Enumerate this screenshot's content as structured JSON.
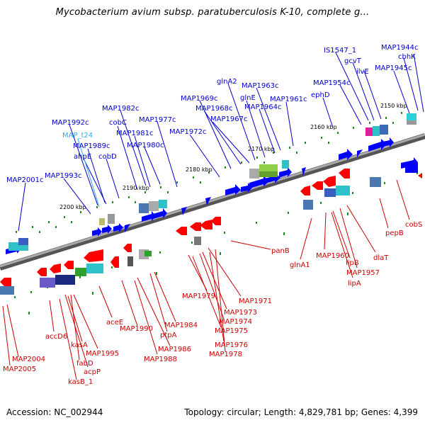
{
  "title": "Mycobacterium avium subsp. paratuberculosis K-10, complete g...",
  "footer": {
    "accession": "Accession: NC_002944",
    "summary": "Topology: circular; Length: 4,829,781 bp; Genes: 4,399"
  },
  "colors": {
    "forward_label": "#0000cc",
    "forward_gene": "#0000ff",
    "highlight_label": "#33aaee",
    "reverse_label": "#cc0000",
    "reverse_gene": "#ff0000",
    "backbone": "#777777"
  },
  "ticks": [
    "2150 kbp",
    "2160 kbp",
    "2170 kbp",
    "2180 kbp",
    "2190 kbp",
    "2200 kbp"
  ],
  "forward_labels": [
    "MAP1944c",
    "cbhK",
    "IS1547_1",
    "gcvT",
    "ilvE",
    "MAP1945c",
    "MAP1954c",
    "ephD",
    "MAP1963c",
    "glnA2",
    "glnE",
    "MAP1964c",
    "MAP1961c",
    "MAP1969c",
    "MAP1968c",
    "MAP1967c",
    "MAP1982c",
    "MAP1977c",
    "MAP1972c",
    "cobC",
    "MAP1981c",
    "MAP1980c",
    "MAP1992c",
    "MAP_t24",
    "MAP1989c",
    "ahpE",
    "cobD",
    "MAP1993c",
    "MAP2001c"
  ],
  "reverse_labels": [
    "cobS",
    "pepB",
    "dlaT",
    "glnA1",
    "MAP1960",
    "lipB",
    "MAP1957",
    "lipA",
    "panB",
    "MAP1971",
    "MAP1979",
    "MAP1973",
    "MAP1974",
    "MAP1975",
    "MAP1976",
    "MAP1978",
    "MAP1984",
    "ptpA",
    "MAP1990",
    "MAP1986",
    "MAP1988",
    "aceE",
    "accD6",
    "kasA",
    "MAP1995",
    "fabD",
    "acpP",
    "kasB_1",
    "MAP2004",
    "MAP2005"
  ]
}
